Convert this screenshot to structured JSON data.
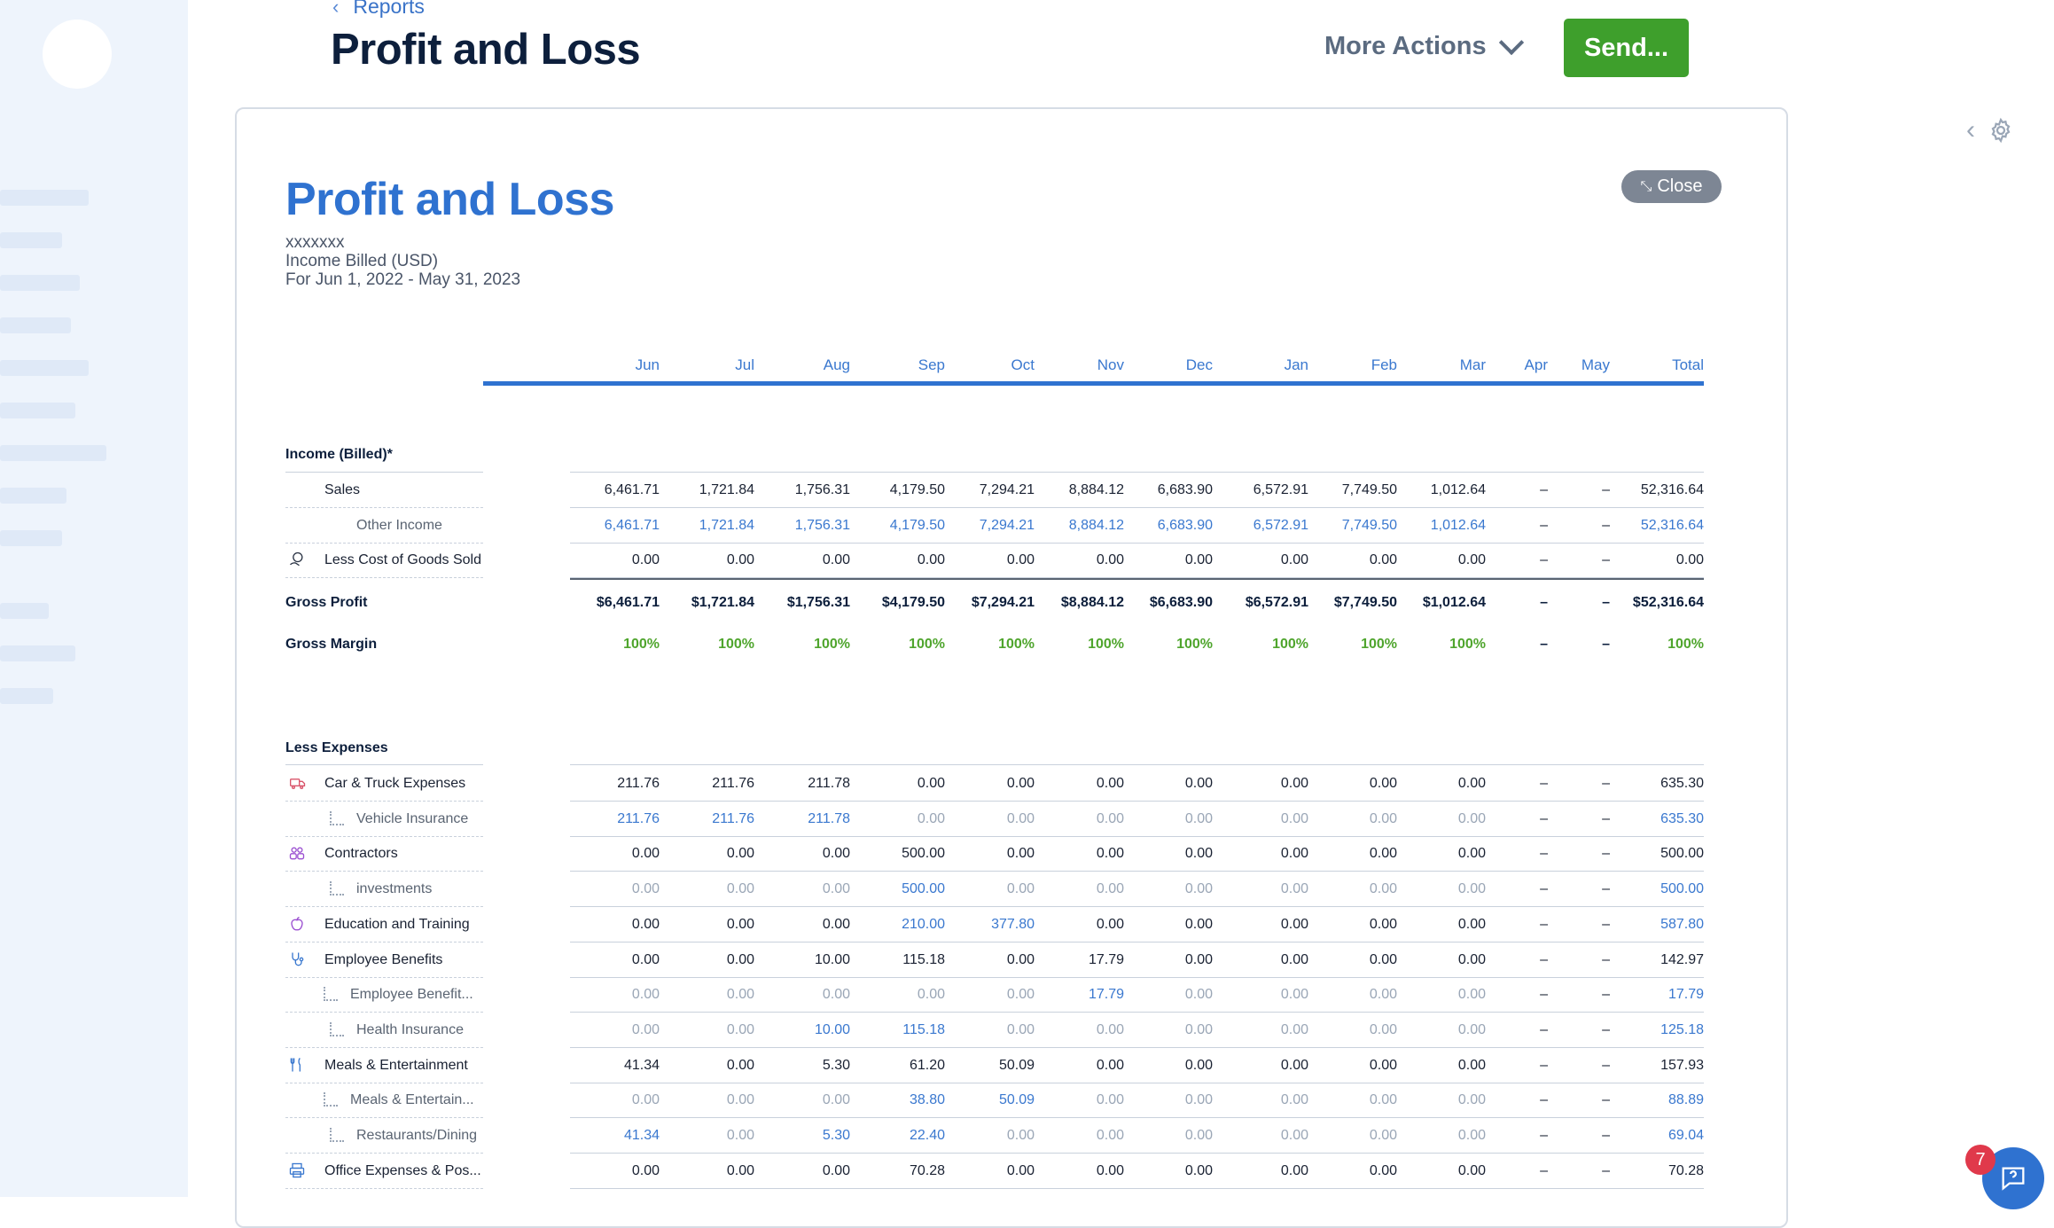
{
  "header": {
    "back_label": "Reports",
    "page_title": "Profit and Loss",
    "more_actions_label": "More Actions",
    "send_label": "Send..."
  },
  "report": {
    "title": "Profit and Loss",
    "business_name": "xxxxxxx",
    "basis": "Income Billed (USD)",
    "period": "For Jun 1, 2022 - May 31, 2023",
    "close_label": "Close",
    "columns": [
      "Jun",
      "Jul",
      "Aug",
      "Sep",
      "Oct",
      "Nov",
      "Dec",
      "Jan",
      "Feb",
      "Mar",
      "Apr",
      "May",
      "Total"
    ]
  },
  "sections": {
    "income_title": "Income (Billed)*",
    "expenses_title": "Less Expenses"
  },
  "income_rows": [
    {
      "label": "Sales",
      "type": "main",
      "icon": "",
      "values": [
        "6,461.71",
        "1,721.84",
        "1,756.31",
        "4,179.50",
        "7,294.21",
        "8,884.12",
        "6,683.90",
        "6,572.91",
        "7,749.50",
        "1,012.64",
        "–",
        "–",
        "52,316.64"
      ]
    },
    {
      "label": "Other Income",
      "type": "sub",
      "icon": "",
      "values": [
        "6,461.71",
        "1,721.84",
        "1,756.31",
        "4,179.50",
        "7,294.21",
        "8,884.12",
        "6,683.90",
        "6,572.91",
        "7,749.50",
        "1,012.64",
        "–",
        "–",
        "52,316.64"
      ]
    },
    {
      "label": "Less Cost of Goods Sold",
      "type": "main",
      "icon": "cogs-icon",
      "values": [
        "0.00",
        "0.00",
        "0.00",
        "0.00",
        "0.00",
        "0.00",
        "0.00",
        "0.00",
        "0.00",
        "0.00",
        "–",
        "–",
        "0.00"
      ]
    }
  ],
  "gross_profit": {
    "label": "Gross Profit",
    "values": [
      "$6,461.71",
      "$1,721.84",
      "$1,756.31",
      "$4,179.50",
      "$7,294.21",
      "$8,884.12",
      "$6,683.90",
      "$6,572.91",
      "$7,749.50",
      "$1,012.64",
      "–",
      "–",
      "$52,316.64"
    ]
  },
  "gross_margin": {
    "label": "Gross Margin",
    "values": [
      "100%",
      "100%",
      "100%",
      "100%",
      "100%",
      "100%",
      "100%",
      "100%",
      "100%",
      "100%",
      "–",
      "–",
      "100%"
    ]
  },
  "expense_rows": [
    {
      "label": "Car & Truck Expenses",
      "type": "main",
      "icon": "truck-icon",
      "values": [
        "211.76",
        "211.76",
        "211.78",
        "0.00",
        "0.00",
        "0.00",
        "0.00",
        "0.00",
        "0.00",
        "0.00",
        "–",
        "–",
        "635.30"
      ]
    },
    {
      "label": "Vehicle Insurance",
      "type": "sub",
      "icon": "",
      "values": [
        "211.76",
        "211.76",
        "211.78",
        "0.00",
        "0.00",
        "0.00",
        "0.00",
        "0.00",
        "0.00",
        "0.00",
        "–",
        "–",
        "635.30"
      ]
    },
    {
      "label": "Contractors",
      "type": "main",
      "icon": "contractors-icon",
      "values": [
        "0.00",
        "0.00",
        "0.00",
        "500.00",
        "0.00",
        "0.00",
        "0.00",
        "0.00",
        "0.00",
        "0.00",
        "–",
        "–",
        "500.00"
      ]
    },
    {
      "label": "investments",
      "type": "sub",
      "icon": "",
      "values": [
        "0.00",
        "0.00",
        "0.00",
        "500.00",
        "0.00",
        "0.00",
        "0.00",
        "0.00",
        "0.00",
        "0.00",
        "–",
        "–",
        "500.00"
      ]
    },
    {
      "label": "Education and Training",
      "type": "main",
      "icon": "apple-icon",
      "values": [
        "0.00",
        "0.00",
        "0.00",
        "210.00",
        "377.80",
        "0.00",
        "0.00",
        "0.00",
        "0.00",
        "0.00",
        "–",
        "–",
        "587.80"
      ],
      "blue": [
        3,
        4,
        12
      ]
    },
    {
      "label": "Employee Benefits",
      "type": "main",
      "icon": "stethoscope-icon",
      "values": [
        "0.00",
        "0.00",
        "10.00",
        "115.18",
        "0.00",
        "17.79",
        "0.00",
        "0.00",
        "0.00",
        "0.00",
        "–",
        "–",
        "142.97"
      ]
    },
    {
      "label": "Employee Benefit...",
      "type": "sub",
      "icon": "",
      "values": [
        "0.00",
        "0.00",
        "0.00",
        "0.00",
        "0.00",
        "17.79",
        "0.00",
        "0.00",
        "0.00",
        "0.00",
        "–",
        "–",
        "17.79"
      ]
    },
    {
      "label": "Health Insurance",
      "type": "sub",
      "icon": "",
      "values": [
        "0.00",
        "0.00",
        "10.00",
        "115.18",
        "0.00",
        "0.00",
        "0.00",
        "0.00",
        "0.00",
        "0.00",
        "–",
        "–",
        "125.18"
      ]
    },
    {
      "label": "Meals & Entertainment",
      "type": "main",
      "icon": "fork-knife-icon",
      "values": [
        "41.34",
        "0.00",
        "5.30",
        "61.20",
        "50.09",
        "0.00",
        "0.00",
        "0.00",
        "0.00",
        "0.00",
        "–",
        "–",
        "157.93"
      ]
    },
    {
      "label": "Meals & Entertain...",
      "type": "sub",
      "icon": "",
      "values": [
        "0.00",
        "0.00",
        "0.00",
        "38.80",
        "50.09",
        "0.00",
        "0.00",
        "0.00",
        "0.00",
        "0.00",
        "–",
        "–",
        "88.89"
      ]
    },
    {
      "label": "Restaurants/Dining",
      "type": "sub",
      "icon": "",
      "values": [
        "41.34",
        "0.00",
        "5.30",
        "22.40",
        "0.00",
        "0.00",
        "0.00",
        "0.00",
        "0.00",
        "0.00",
        "–",
        "–",
        "69.04"
      ]
    },
    {
      "label": "Office Expenses & Pos...",
      "type": "main",
      "icon": "printer-icon",
      "values": [
        "0.00",
        "0.00",
        "0.00",
        "70.28",
        "0.00",
        "0.00",
        "0.00",
        "0.00",
        "0.00",
        "0.00",
        "–",
        "–",
        "70.28"
      ]
    }
  ],
  "help": {
    "badge_count": "7"
  },
  "colors": {
    "accent": "#2f72d0",
    "send": "#3e9f2c",
    "margin": "#4fa52d"
  }
}
